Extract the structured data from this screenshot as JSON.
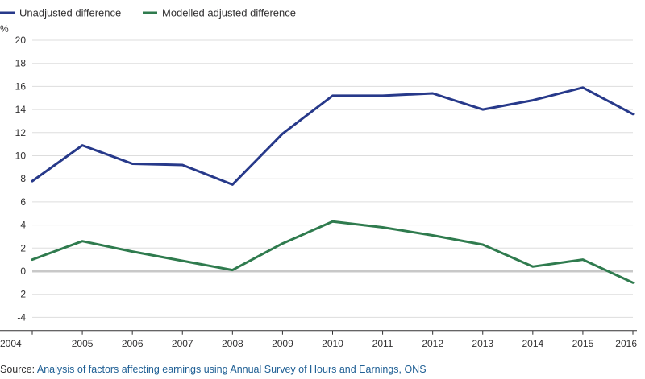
{
  "chart_data": {
    "type": "line",
    "title": "",
    "xlabel": "",
    "ylabel": "%",
    "ylim": [
      -5,
      20
    ],
    "yticks": [
      20,
      18,
      16,
      14,
      12,
      10,
      8,
      6,
      4,
      2,
      0,
      -2,
      -4
    ],
    "categories": [
      "2004",
      "2005",
      "2006",
      "2007",
      "2008",
      "2009",
      "2010",
      "2011",
      "2012",
      "2013",
      "2014",
      "2015",
      "2016"
    ],
    "grid": true,
    "legend_position": "top-left",
    "series": [
      {
        "name": "Unadjusted difference",
        "color": "#27398a",
        "values": [
          7.8,
          10.9,
          9.3,
          9.2,
          7.5,
          11.9,
          15.2,
          15.2,
          15.4,
          14.0,
          14.8,
          15.9,
          13.6
        ]
      },
      {
        "name": "Modelled adjusted difference",
        "color": "#2f7b4e",
        "values": [
          1.0,
          2.6,
          1.7,
          0.9,
          0.1,
          2.4,
          4.3,
          3.8,
          3.1,
          2.3,
          0.4,
          1.0,
          -1.0
        ]
      }
    ]
  },
  "source": {
    "label": "Source: ",
    "text": "Analysis of factors affecting earnings using Annual Survey of Hours and Earnings, ONS"
  },
  "colors": {
    "gridline": "#dddddd",
    "zeroline": "#c8c8c8",
    "axis": "#323132",
    "link": "#206095"
  }
}
